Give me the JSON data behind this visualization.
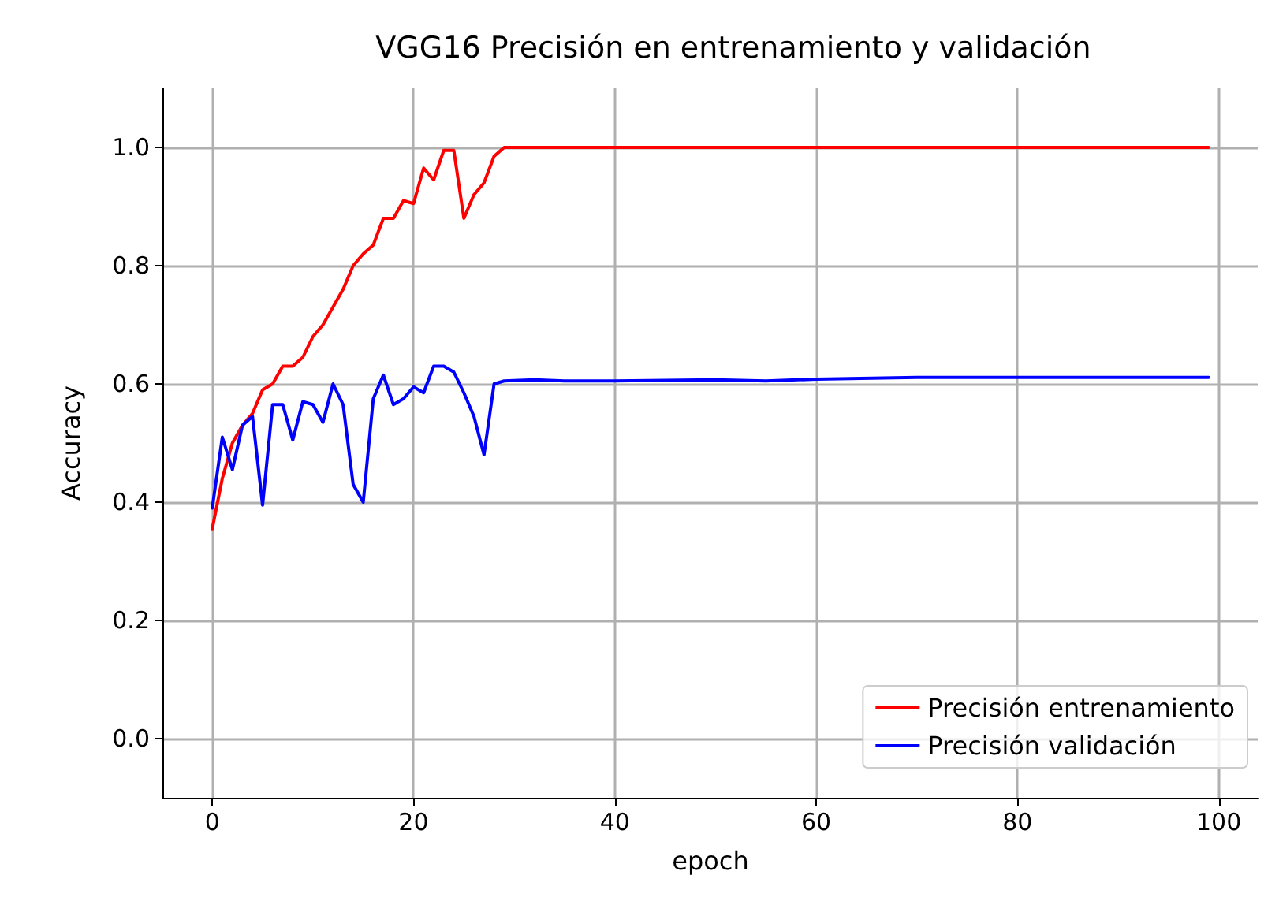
{
  "chart_data": {
    "type": "line",
    "title": "VGG16 Precisión en entrenamiento y validación",
    "xlabel": "epoch",
    "ylabel": "Accuracy",
    "xlim": [
      -4.95,
      103.95
    ],
    "xticks": [
      0,
      20,
      40,
      60,
      80,
      100
    ],
    "ylim": [
      -0.1,
      1.1
    ],
    "yticks": [
      {
        "value": 0,
        "label": "0.0"
      },
      0.2,
      0.4,
      0.6,
      0.8,
      {
        "value": 1,
        "label": "1.0"
      }
    ],
    "grid": true,
    "legend": "bottom right",
    "marker": "none",
    "line_style": "solid",
    "series": [
      {
        "name": "Precisión entrenamiento",
        "color": "#ff0000",
        "x": [
          0,
          1,
          2,
          3,
          4,
          5,
          6,
          7,
          8,
          9,
          10,
          11,
          12,
          13,
          14,
          15,
          16,
          17,
          18,
          19,
          20,
          21,
          22,
          23,
          24,
          25,
          26,
          27,
          28,
          29,
          40,
          60,
          80,
          99
        ],
        "values": [
          0.355,
          0.44,
          0.5,
          0.53,
          0.55,
          0.59,
          0.6,
          0.63,
          0.63,
          0.645,
          0.68,
          0.7,
          0.73,
          0.76,
          0.8,
          0.82,
          0.835,
          0.88,
          0.88,
          0.91,
          0.905,
          0.965,
          0.945,
          0.995,
          0.995,
          0.88,
          0.92,
          0.94,
          0.985,
          1.0,
          1.0,
          1.0,
          1.0,
          1.0
        ]
      },
      {
        "name": "Precisión validación",
        "color": "#0000ff",
        "x": [
          0,
          1,
          2,
          3,
          4,
          5,
          6,
          7,
          8,
          9,
          10,
          11,
          12,
          13,
          14,
          15,
          16,
          17,
          18,
          19,
          20,
          21,
          22,
          23,
          24,
          25,
          26,
          27,
          28,
          29,
          32,
          35,
          40,
          50,
          55,
          60,
          70,
          80,
          90,
          99
        ],
        "values": [
          0.39,
          0.51,
          0.455,
          0.53,
          0.545,
          0.395,
          0.565,
          0.565,
          0.505,
          0.57,
          0.565,
          0.535,
          0.6,
          0.565,
          0.43,
          0.4,
          0.575,
          0.615,
          0.565,
          0.575,
          0.595,
          0.585,
          0.63,
          0.63,
          0.62,
          0.585,
          0.545,
          0.48,
          0.6,
          0.605,
          0.607,
          0.605,
          0.605,
          0.607,
          0.605,
          0.608,
          0.611,
          0.611,
          0.611,
          0.611
        ]
      }
    ]
  }
}
